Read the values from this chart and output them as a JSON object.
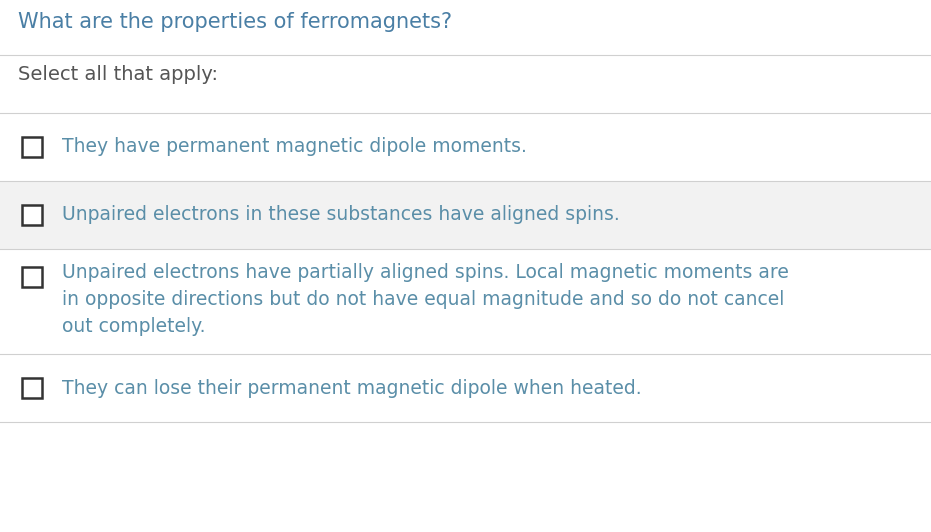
{
  "title": "What are the properties of ferromagnets?",
  "subtitle": "Select all that apply:",
  "options": [
    {
      "text": "They have permanent magnetic dipole moments.",
      "lines": 1,
      "bg": "#ffffff"
    },
    {
      "text": "Unpaired electrons in these substances have aligned spins.",
      "lines": 1,
      "bg": "#f2f2f2"
    },
    {
      "text": "Unpaired electrons have partially aligned spins. Local magnetic moments are\nin opposite directions but do not have equal magnitude and so do not cancel\nout completely.",
      "lines": 3,
      "bg": "#ffffff"
    },
    {
      "text": "They can lose their permanent magnetic dipole when heated.",
      "lines": 1,
      "bg": "#ffffff"
    }
  ],
  "title_color": "#4a7fa5",
  "subtitle_color": "#555555",
  "option_text_color": "#5a8ea8",
  "separator_color": "#d0d0d0",
  "checkbox_edge_color": "#333333",
  "fig_bg": "#ffffff",
  "title_fontsize": 15,
  "subtitle_fontsize": 14,
  "option_fontsize": 13.5,
  "fig_width": 9.31,
  "fig_height": 5.32,
  "dpi": 100
}
